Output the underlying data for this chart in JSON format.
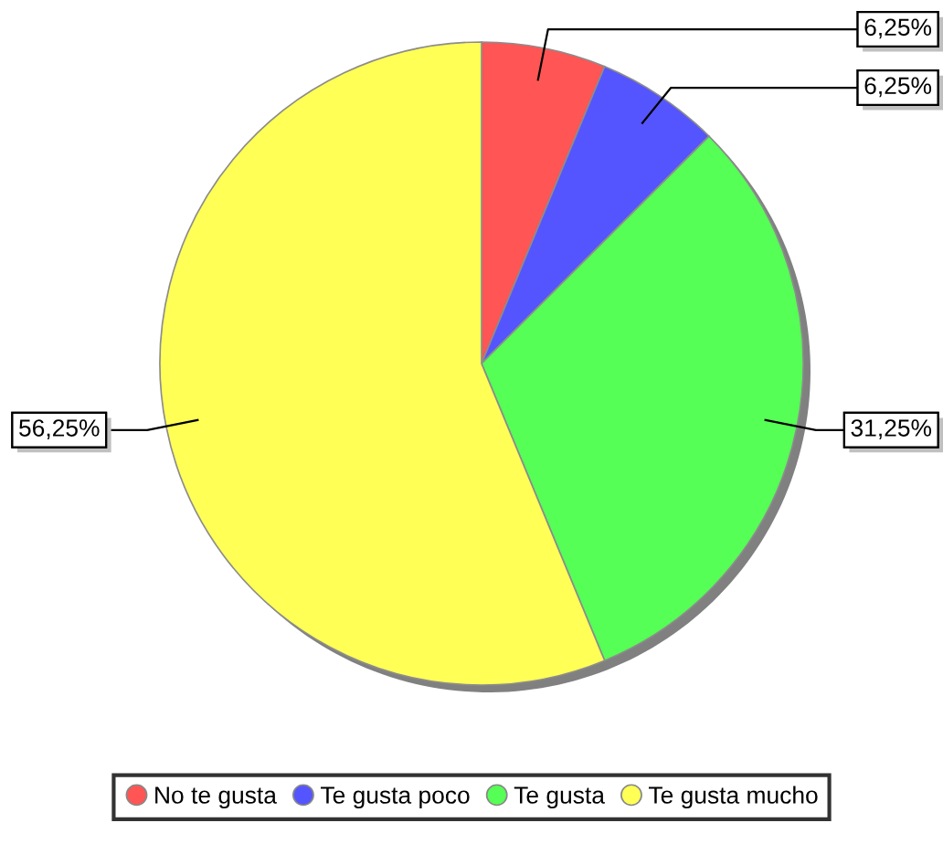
{
  "chart_data": {
    "type": "pie",
    "categories": [
      "No te gusta",
      "Te gusta poco",
      "Te gusta",
      "Te gusta mucho"
    ],
    "values": [
      6.25,
      6.25,
      31.25,
      56.25
    ],
    "colors": [
      "#ff5555",
      "#5555ff",
      "#55ff55",
      "#ffff55"
    ],
    "value_labels": [
      "6,25%",
      "6,25%",
      "31,25%",
      "56,25%"
    ],
    "legend": "bottom"
  }
}
